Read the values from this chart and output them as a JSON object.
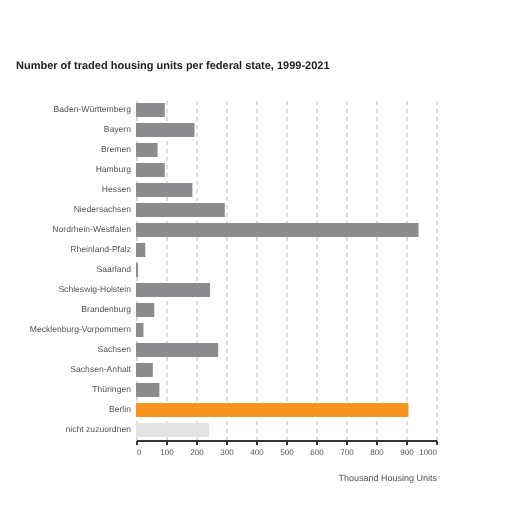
{
  "chart_data": {
    "type": "bar",
    "orientation": "horizontal",
    "title": "Number of traded housing units per federal state, 1999-2021",
    "xlabel": "Thousand Housing Units",
    "categories": [
      "Baden-Württemberg",
      "Bayern",
      "Bremen",
      "Hamburg",
      "Hessen",
      "Niedersachsen",
      "Nordrhein-Westfalen",
      "Rheinland-Pfalz",
      "Saarland",
      "Schleswig-Holstein",
      "Brandenburg",
      "Mecklenburg-Vorpommern",
      "Sachsen",
      "Sachsen-Anhalt",
      "Thüringen",
      "Berlin",
      "nicht zuzuordnen"
    ],
    "values": [
      96,
      195,
      72,
      96,
      188,
      296,
      942,
      31,
      7,
      247,
      61,
      25,
      274,
      56,
      78,
      908,
      244
    ],
    "colors": [
      "#8c8c8e",
      "#8c8c8e",
      "#8c8c8e",
      "#8c8c8e",
      "#8c8c8e",
      "#8c8c8e",
      "#8c8c8e",
      "#8c8c8e",
      "#8c8c8e",
      "#8c8c8e",
      "#8c8c8e",
      "#8c8c8e",
      "#8c8c8e",
      "#8c8c8e",
      "#8c8c8e",
      "#f7941d",
      "#e3e3e5"
    ],
    "xlim": [
      0,
      1000
    ],
    "xticks": [
      0,
      100,
      200,
      300,
      400,
      500,
      600,
      700,
      800,
      900,
      1000
    ],
    "grid": "x"
  }
}
